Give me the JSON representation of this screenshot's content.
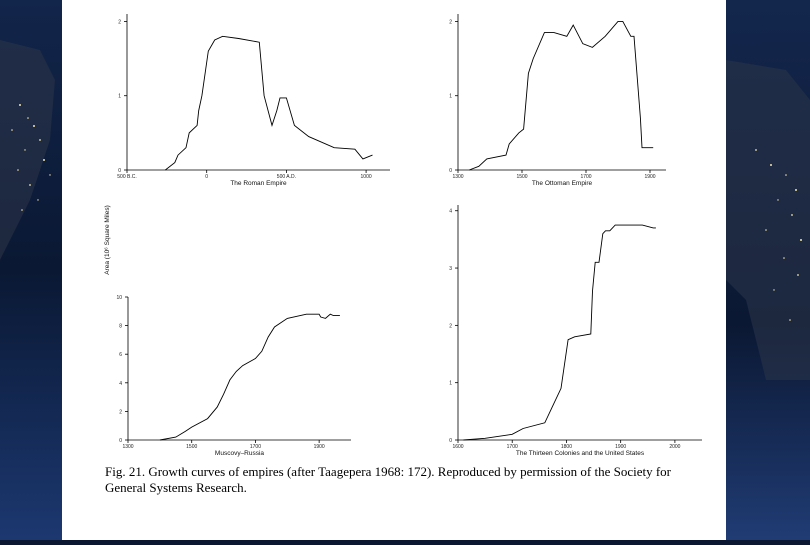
{
  "caption": "Fig. 21. Growth curves of empires (after Taagepera 1968: 172). Reproduced by permission of the Society for General Systems Research.",
  "y_axis_label": "Area (10⁶ Square Miles)",
  "chart_data": [
    {
      "type": "line",
      "title": "The Roman Empire",
      "x_tick_labels": [
        "500 B.C.",
        "0",
        "500 A.D.",
        "1000"
      ],
      "x_ticks": [
        -500,
        0,
        500,
        1000
      ],
      "y_tick_labels": [
        "0",
        "1",
        "2"
      ],
      "y_ticks": [
        0,
        1,
        2
      ],
      "xlim": [
        -500,
        1150
      ],
      "ylim": [
        0,
        2.1
      ],
      "x": [
        -260,
        -200,
        -180,
        -130,
        -110,
        -60,
        -50,
        -30,
        -10,
        10,
        50,
        100,
        200,
        330,
        360,
        410,
        440,
        460,
        500,
        550,
        640,
        800,
        930,
        980,
        1040
      ],
      "y": [
        0,
        0.1,
        0.2,
        0.3,
        0.5,
        0.6,
        0.8,
        1.0,
        1.3,
        1.6,
        1.75,
        1.8,
        1.77,
        1.72,
        1.0,
        0.6,
        0.8,
        0.97,
        0.97,
        0.6,
        0.45,
        0.3,
        0.28,
        0.15,
        0.2
      ]
    },
    {
      "type": "line",
      "title": "The Ottoman Empire",
      "x_tick_labels": [
        "1300",
        "1500",
        "1700",
        "1900"
      ],
      "x_ticks": [
        1300,
        1500,
        1700,
        1900
      ],
      "y_tick_labels": [
        "0",
        "1",
        "2"
      ],
      "y_ticks": [
        0,
        1,
        2
      ],
      "xlim": [
        1300,
        1950
      ],
      "ylim": [
        0,
        2.1
      ],
      "x": [
        1335,
        1365,
        1390,
        1450,
        1460,
        1490,
        1505,
        1520,
        1535,
        1570,
        1600,
        1640,
        1660,
        1690,
        1720,
        1760,
        1800,
        1815,
        1840,
        1850,
        1870,
        1875,
        1910
      ],
      "y": [
        0,
        0.05,
        0.15,
        0.2,
        0.35,
        0.5,
        0.55,
        1.3,
        1.5,
        1.85,
        1.85,
        1.8,
        1.95,
        1.7,
        1.65,
        1.8,
        2.0,
        2.0,
        1.8,
        1.8,
        0.7,
        0.3,
        0.3
      ]
    },
    {
      "type": "line",
      "title": "Muscovy–Russia",
      "x_tick_labels": [
        "1300",
        "1500",
        "1700",
        "1900"
      ],
      "x_ticks": [
        1300,
        1500,
        1700,
        1900
      ],
      "y_tick_labels": [
        "0",
        "2",
        "4",
        "6",
        "8",
        "10"
      ],
      "y_ticks": [
        0,
        2,
        4,
        6,
        8,
        10
      ],
      "xlim": [
        1300,
        2000
      ],
      "ylim": [
        0,
        10
      ],
      "x": [
        1400,
        1450,
        1480,
        1500,
        1550,
        1580,
        1600,
        1620,
        1640,
        1660,
        1700,
        1720,
        1740,
        1760,
        1800,
        1860,
        1900,
        1905,
        1920,
        1935,
        1945,
        1965
      ],
      "y": [
        0,
        0.2,
        0.6,
        0.9,
        1.5,
        2.3,
        3.2,
        4.2,
        4.8,
        5.2,
        5.7,
        6.2,
        7.2,
        7.9,
        8.5,
        8.8,
        8.8,
        8.6,
        8.5,
        8.8,
        8.7,
        8.7
      ]
    },
    {
      "type": "line",
      "title": "The Thirteen Colonies and the United States",
      "x_tick_labels": [
        "1600",
        "1700",
        "1800",
        "1900",
        "2000"
      ],
      "x_ticks": [
        1600,
        1700,
        1800,
        1900,
        2000
      ],
      "y_tick_labels": [
        "0",
        "1",
        "2",
        "3",
        "4"
      ],
      "y_ticks": [
        0,
        1,
        2,
        3,
        4
      ],
      "xlim": [
        1600,
        2050
      ],
      "ylim": [
        0,
        4.1
      ],
      "x": [
        1610,
        1650,
        1700,
        1720,
        1760,
        1775,
        1790,
        1803,
        1815,
        1845,
        1848,
        1853,
        1860,
        1867,
        1872,
        1880,
        1890,
        1898,
        1920,
        1940,
        1960,
        1965
      ],
      "y": [
        0,
        0.03,
        0.1,
        0.2,
        0.3,
        0.6,
        0.9,
        1.75,
        1.8,
        1.85,
        2.6,
        3.1,
        3.1,
        3.6,
        3.65,
        3.65,
        3.75,
        3.75,
        3.75,
        3.75,
        3.7,
        3.7
      ]
    }
  ]
}
